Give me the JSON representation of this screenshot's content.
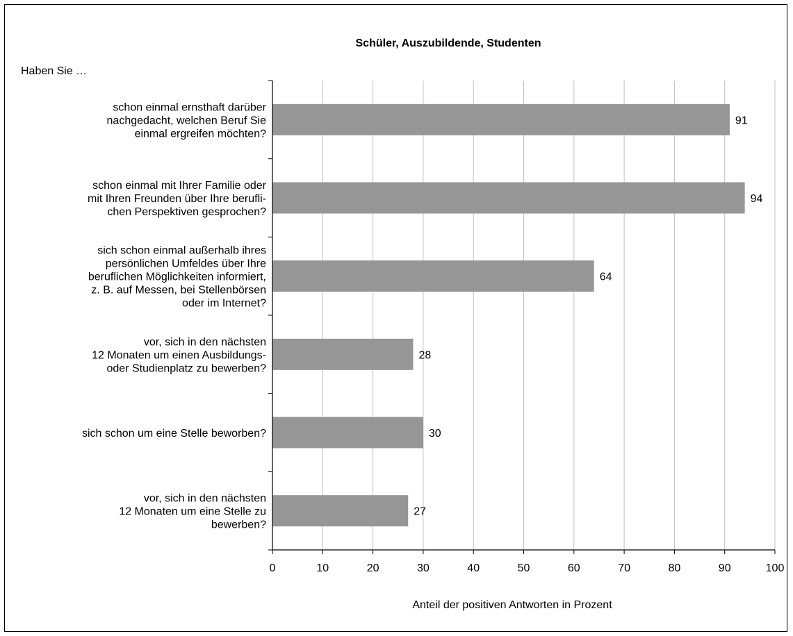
{
  "chart_data": {
    "type": "bar",
    "orientation": "horizontal",
    "title": "Schüler, Auszubildende, Studenten",
    "question_prefix": "Haben Sie …",
    "xlabel": "Anteil der positiven Antworten in Prozent",
    "xlim": [
      0,
      100
    ],
    "x_ticks": [
      "0",
      "10",
      "20",
      "30",
      "40",
      "50",
      "60",
      "70",
      "80",
      "90",
      "100"
    ],
    "grid": true,
    "bar_color": "#969696",
    "categories": [
      [
        "schon einmal ernsthaft darüber",
        "nachgedacht, welchen Beruf Sie",
        "einmal ergreifen möchten?"
      ],
      [
        "schon einmal mit Ihrer Familie oder",
        "mit Ihren Freunden über Ihre berufli-",
        "chen Perspektiven gesprochen?"
      ],
      [
        "sich schon einmal außerhalb ihres",
        "persönlichen Umfeldes über Ihre",
        "beruflichen Möglichkeiten informiert,",
        "z. B. auf Messen, bei Stellenbörsen",
        "oder im Internet?"
      ],
      [
        "vor, sich in den nächsten",
        "12 Monaten um einen Ausbildungs-",
        "oder Studienplatz zu bewerben?"
      ],
      [
        "sich schon um eine Stelle beworben?"
      ],
      [
        "vor, sich in den nächsten",
        "12 Monaten um eine Stelle zu",
        "bewerben?"
      ]
    ],
    "values": [
      91,
      94,
      64,
      28,
      30,
      27
    ],
    "value_labels": [
      "91",
      "94",
      "64",
      "28",
      "30",
      "27"
    ]
  }
}
